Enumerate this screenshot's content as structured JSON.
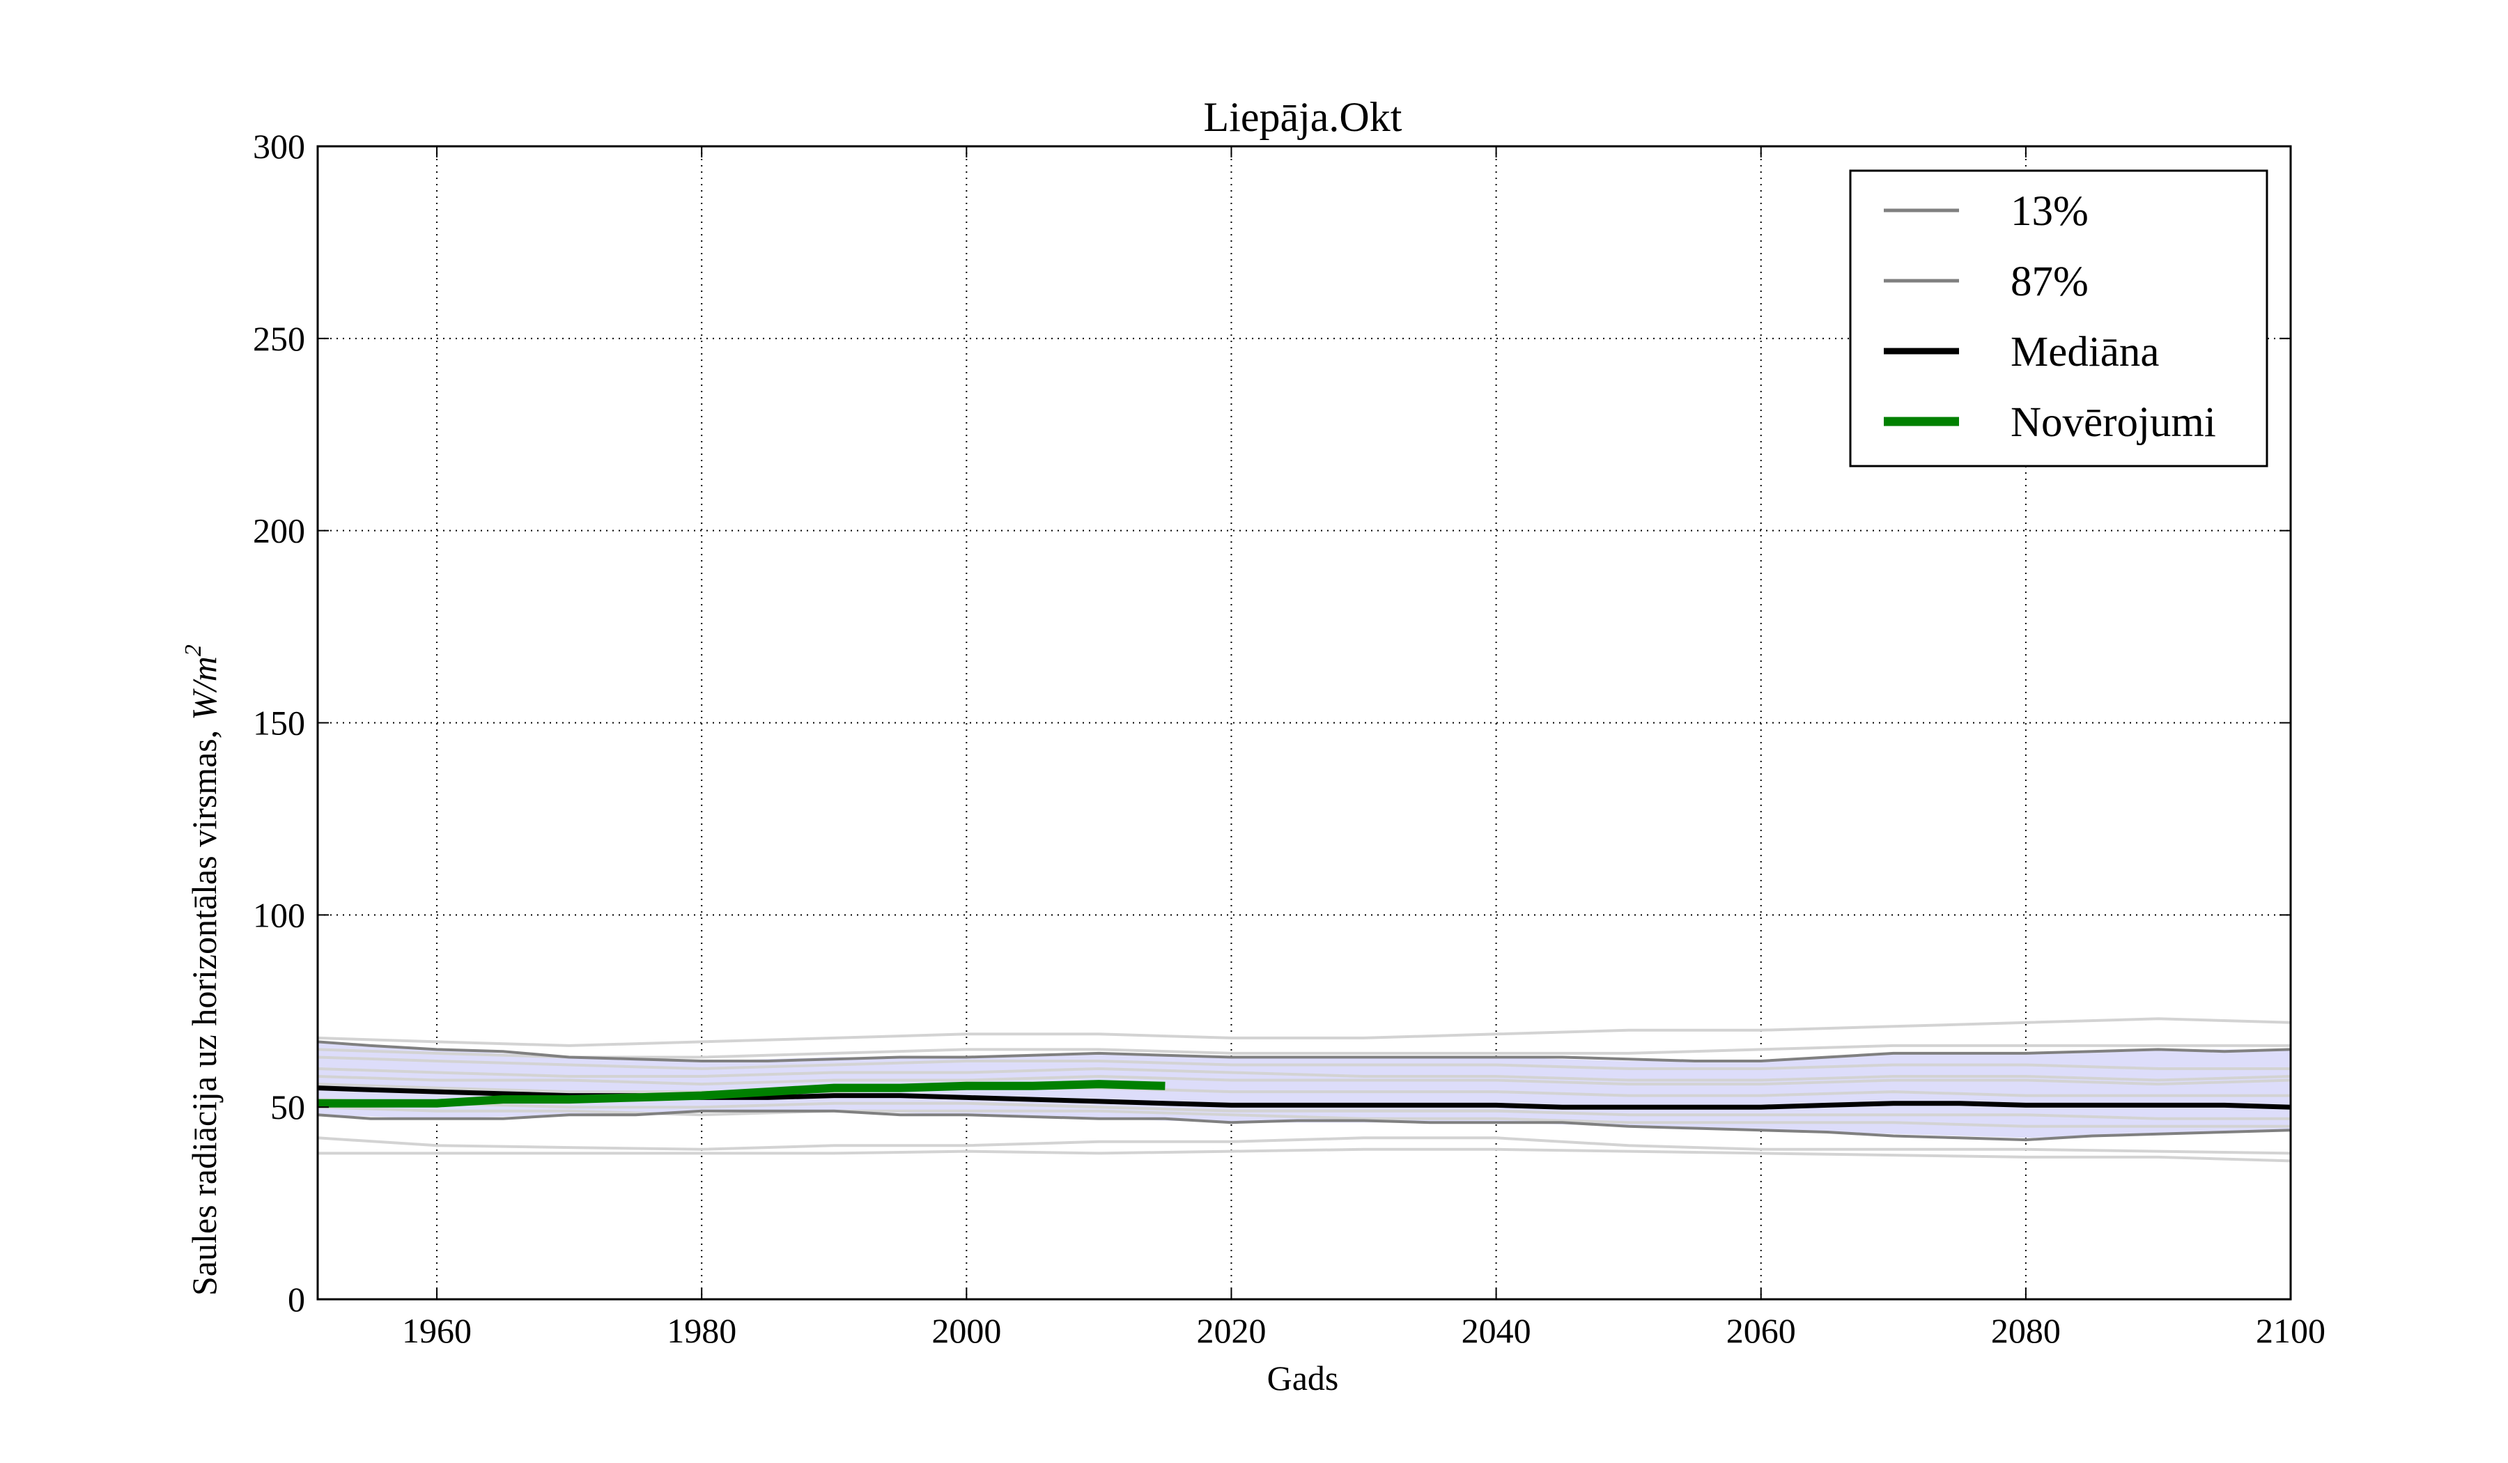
{
  "chart_data": {
    "type": "line",
    "title": "Liepāja.Okt",
    "xlabel": "Gads",
    "ylabel": "Saules radiācija uz horizontālas virsmas,",
    "ylabel_unit": "W/m",
    "ylabel_unit_sup": "2",
    "xlim": [
      1951,
      2100
    ],
    "ylim": [
      0,
      300
    ],
    "xticks": [
      1960,
      1980,
      2000,
      2020,
      2040,
      2060,
      2080,
      2100
    ],
    "yticks": [
      0,
      50,
      100,
      150,
      200,
      250,
      300
    ],
    "grid": true,
    "legend_position": "top-right",
    "band": {
      "color": "#ddddfa",
      "x": [
        1951,
        1960,
        1970,
        1980,
        1990,
        2000,
        2010,
        2020,
        2030,
        2040,
        2050,
        2060,
        2070,
        2080,
        2090,
        2100
      ],
      "lower": [
        48,
        47,
        48,
        49,
        49,
        48,
        47,
        46,
        46,
        46,
        45,
        44,
        43,
        42,
        43,
        44
      ],
      "upper": [
        67,
        65,
        63,
        62,
        63,
        63,
        64,
        63,
        63,
        63,
        62,
        62,
        64,
        64,
        65,
        65
      ]
    },
    "series": [
      {
        "name": "13%",
        "color": "#808080",
        "x": [
          1951,
          1955,
          1960,
          1965,
          1970,
          1975,
          1980,
          1985,
          1990,
          1995,
          2000,
          2005,
          2010,
          2015,
          2020,
          2025,
          2030,
          2035,
          2040,
          2045,
          2050,
          2055,
          2060,
          2065,
          2070,
          2075,
          2080,
          2085,
          2090,
          2095,
          2100
        ],
        "y": [
          48,
          47,
          47,
          47,
          48,
          48,
          49,
          49,
          49,
          48,
          48,
          47.5,
          47,
          47,
          46,
          46.5,
          46.5,
          46,
          46,
          46,
          45,
          44.5,
          44,
          43.5,
          42.5,
          42,
          41.5,
          42.5,
          43,
          43.5,
          44
        ]
      },
      {
        "name": "87%",
        "color": "#808080",
        "x": [
          1951,
          1955,
          1960,
          1965,
          1970,
          1975,
          1980,
          1985,
          1990,
          1995,
          2000,
          2005,
          2010,
          2015,
          2020,
          2025,
          2030,
          2035,
          2040,
          2045,
          2050,
          2055,
          2060,
          2065,
          2070,
          2075,
          2080,
          2085,
          2090,
          2095,
          2100
        ],
        "y": [
          67,
          66,
          65,
          64.5,
          63,
          62.5,
          62,
          62,
          62.5,
          63,
          63,
          63.5,
          64,
          63.5,
          63,
          63,
          63,
          63,
          63,
          63,
          62.5,
          62,
          62,
          63,
          64,
          64,
          64,
          64.5,
          65,
          64.5,
          65
        ]
      },
      {
        "name": "Mediāna",
        "color": "#000000",
        "x": [
          1951,
          1955,
          1960,
          1965,
          1970,
          1975,
          1980,
          1985,
          1990,
          1995,
          2000,
          2005,
          2010,
          2015,
          2020,
          2025,
          2030,
          2035,
          2040,
          2045,
          2050,
          2055,
          2060,
          2065,
          2070,
          2075,
          2080,
          2085,
          2090,
          2095,
          2100
        ],
        "y": [
          55,
          54.5,
          54,
          53.5,
          53,
          53,
          52.5,
          52.5,
          53,
          53,
          52.5,
          52,
          51.5,
          51,
          50.5,
          50.5,
          50.5,
          50.5,
          50.5,
          50,
          50,
          50,
          50,
          50.5,
          51,
          51,
          50.5,
          50.5,
          50.5,
          50.5,
          50
        ]
      },
      {
        "name": "Novērojumi",
        "color": "#008000",
        "x": [
          1951,
          1955,
          1960,
          1965,
          1970,
          1975,
          1980,
          1985,
          1990,
          1995,
          2000,
          2005,
          2010,
          2015
        ],
        "y": [
          51,
          51,
          51,
          52,
          52,
          52.5,
          53,
          54,
          55,
          55,
          55.5,
          55.5,
          56,
          55.5
        ]
      }
    ],
    "ensemble_color": "#d3d3d3",
    "ensemble": [
      {
        "x": [
          1951,
          1960,
          1970,
          1980,
          1990,
          2000,
          2010,
          2020,
          2030,
          2040,
          2050,
          2060,
          2070,
          2080,
          2090,
          2100
        ],
        "y": [
          38,
          38,
          38,
          38,
          38,
          38.5,
          38,
          38.5,
          39,
          39,
          38.5,
          38,
          37.5,
          37,
          37,
          36
        ]
      },
      {
        "x": [
          1951,
          1960,
          1970,
          1980,
          1990,
          2000,
          2010,
          2020,
          2030,
          2040,
          2050,
          2060,
          2070,
          2080,
          2090,
          2100
        ],
        "y": [
          42,
          40,
          39.5,
          39,
          40,
          40,
          41,
          41,
          42,
          42,
          40,
          39,
          39,
          39,
          38.5,
          38
        ]
      },
      {
        "x": [
          1951,
          1960,
          1970,
          1980,
          1990,
          2000,
          2010,
          2020,
          2030,
          2040,
          2050,
          2060,
          2070,
          2080,
          2090,
          2100
        ],
        "y": [
          68,
          67,
          66,
          67,
          68,
          69,
          69,
          68,
          68,
          69,
          70,
          70,
          71,
          72,
          73,
          72
        ]
      },
      {
        "x": [
          1951,
          1960,
          1970,
          1980,
          1990,
          2000,
          2010,
          2020,
          2030,
          2040,
          2050,
          2060,
          2070,
          2080,
          2090,
          2100
        ],
        "y": [
          63,
          62,
          61,
          60,
          61,
          62,
          62,
          61,
          61,
          61,
          60,
          60,
          61,
          61,
          60,
          60
        ]
      },
      {
        "x": [
          1951,
          1960,
          1970,
          1980,
          1990,
          2000,
          2010,
          2020,
          2030,
          2040,
          2050,
          2060,
          2070,
          2080,
          2090,
          2100
        ],
        "y": [
          58,
          57,
          57,
          56,
          57,
          57,
          58,
          57,
          57,
          57,
          56,
          56,
          57,
          57,
          56,
          57
        ]
      },
      {
        "x": [
          1951,
          1960,
          1970,
          1980,
          1990,
          2000,
          2010,
          2020,
          2030,
          2040,
          2050,
          2060,
          2070,
          2080,
          2090,
          2100
        ],
        "y": [
          52,
          51,
          50,
          50,
          51,
          51,
          50,
          49,
          49,
          49,
          48,
          48,
          48,
          48,
          47,
          47
        ]
      },
      {
        "x": [
          1951,
          1960,
          1970,
          1980,
          1990,
          2000,
          2010,
          2020,
          2030,
          2040,
          2050,
          2060,
          2070,
          2080,
          2090,
          2100
        ],
        "y": [
          60,
          59,
          58,
          58,
          59,
          59,
          60,
          59,
          58,
          58,
          57,
          57,
          58,
          58,
          57,
          58
        ]
      },
      {
        "x": [
          1951,
          1960,
          1970,
          1980,
          1990,
          2000,
          2010,
          2020,
          2030,
          2040,
          2050,
          2060,
          2070,
          2080,
          2090,
          2100
        ],
        "y": [
          56,
          55,
          54,
          54,
          54,
          55,
          55,
          54,
          54,
          54,
          53,
          53,
          54,
          53,
          53,
          53
        ]
      },
      {
        "x": [
          1951,
          1960,
          1970,
          1980,
          1990,
          2000,
          2010,
          2020,
          2030,
          2040,
          2050,
          2060,
          2070,
          2080,
          2090,
          2100
        ],
        "y": [
          50,
          49,
          49,
          48,
          49,
          49,
          49,
          48,
          47,
          47,
          46,
          46,
          46,
          45,
          45,
          45
        ]
      },
      {
        "x": [
          1951,
          1960,
          1970,
          1980,
          1990,
          2000,
          2010,
          2020,
          2030,
          2040,
          2050,
          2060,
          2070,
          2080,
          2090,
          2100
        ],
        "y": [
          65,
          64,
          63,
          63,
          64,
          65,
          65,
          64,
          64,
          64,
          64,
          65,
          66,
          66,
          66,
          66
        ]
      }
    ],
    "legend": [
      {
        "label": "13%",
        "color": "#808080",
        "width": 3
      },
      {
        "label": "87%",
        "color": "#808080",
        "width": 3
      },
      {
        "label": "Mediāna",
        "color": "#000000",
        "width": 7
      },
      {
        "label": "Novērojumi",
        "color": "#008000",
        "width": 11
      }
    ]
  }
}
